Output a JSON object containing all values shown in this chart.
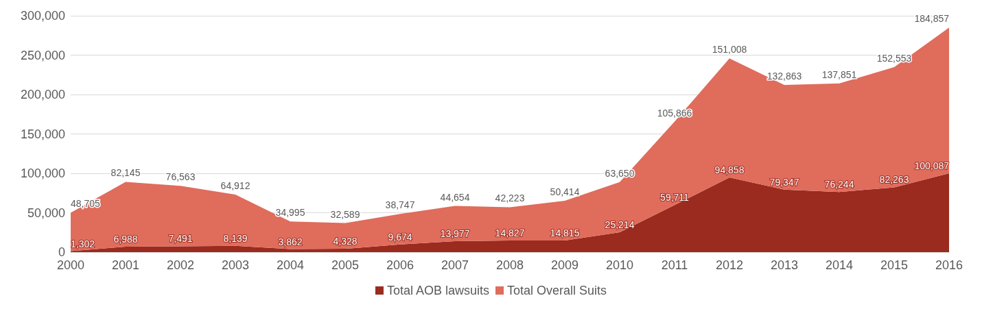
{
  "chart_data": {
    "type": "area",
    "stacked": true,
    "categories": [
      "2000",
      "2001",
      "2002",
      "2003",
      "2004",
      "2005",
      "2006",
      "2007",
      "2008",
      "2009",
      "2010",
      "2011",
      "2012",
      "2013",
      "2014",
      "2015",
      "2016"
    ],
    "series": [
      {
        "name": "Total AOB lawsuits",
        "color": "#9b2b1f",
        "values": [
          1302,
          6988,
          7491,
          8139,
          3862,
          4328,
          9674,
          13977,
          14827,
          14815,
          25214,
          59711,
          94858,
          79347,
          76244,
          82263,
          100087
        ],
        "value_labels": [
          "1,302",
          "6,988",
          "7,491",
          "8,139",
          "3,862",
          "4,328",
          "9,674",
          "13,977",
          "14,827",
          "14,815",
          "25,214",
          "59,711",
          "94,858",
          "79,347",
          "76,244",
          "82,263",
          "100,087"
        ]
      },
      {
        "name": "Total Overall Suits",
        "color": "#e06c5c",
        "values": [
          48705,
          82145,
          76563,
          64912,
          34995,
          32589,
          38747,
          44654,
          42223,
          50414,
          63650,
          105866,
          151008,
          132863,
          137851,
          152553,
          184857
        ],
        "value_labels": [
          "48,705",
          "82,145",
          "76,563",
          "64,912",
          "34,995",
          "32,589",
          "38,747",
          "44,654",
          "42,223",
          "50,414",
          "63,650",
          "105,866",
          "151,008",
          "132,863",
          "137,851",
          "152,553",
          "184,857"
        ]
      }
    ],
    "ylim": [
      0,
      300000
    ],
    "yticks": [
      0,
      {
        "value": 50000,
        "label": "50,000"
      },
      {
        "value": 100000,
        "label": "100,000"
      },
      {
        "value": 150000,
        "label": "150,000"
      },
      {
        "value": 200000,
        "label": "200,000"
      },
      {
        "value": 250000,
        "label": "250,000"
      },
      {
        "value": 300000,
        "label": "300,000"
      }
    ],
    "grid": "y",
    "legend": "bottom"
  }
}
